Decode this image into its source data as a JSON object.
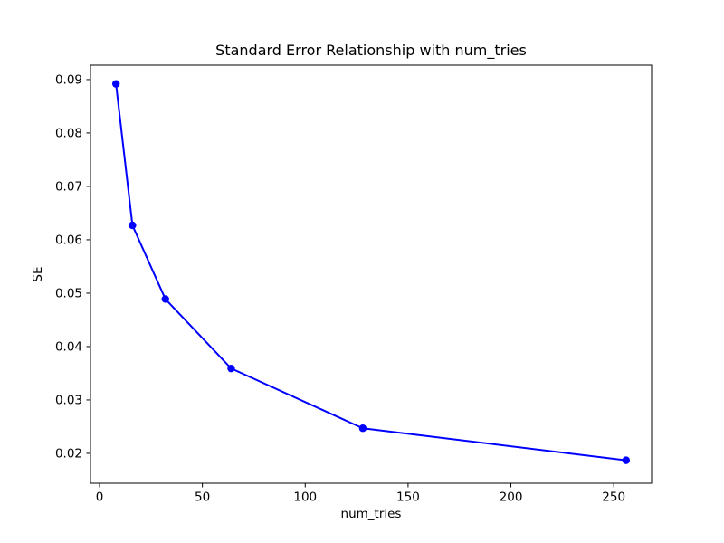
{
  "figure": {
    "background_color": "#ffffff",
    "axes_edge_color": "#000000"
  },
  "chart_data": {
    "type": "line",
    "title": "Standard Error Relationship with num_tries",
    "xlabel": "num_tries",
    "ylabel": "SE",
    "x": [
      8,
      16,
      32,
      64,
      128,
      256
    ],
    "y": [
      0.0892,
      0.0627,
      0.0489,
      0.0359,
      0.0247,
      0.0187
    ],
    "line_color": "#0000ff",
    "marker": "circle",
    "marker_color": "#0000ff",
    "xticks": [
      0,
      50,
      100,
      150,
      200,
      250
    ],
    "xtick_labels": [
      "0",
      "50",
      "100",
      "150",
      "200",
      "250"
    ],
    "yticks": [
      0.02,
      0.03,
      0.04,
      0.05,
      0.06,
      0.07,
      0.08,
      0.09
    ],
    "ytick_labels": [
      "0.02",
      "0.03",
      "0.04",
      "0.05",
      "0.06",
      "0.07",
      "0.08",
      "0.09"
    ],
    "xlim": [
      -4.4,
      268.4
    ],
    "ylim": [
      0.0144,
      0.0927
    ],
    "grid": false,
    "legend": null
  }
}
